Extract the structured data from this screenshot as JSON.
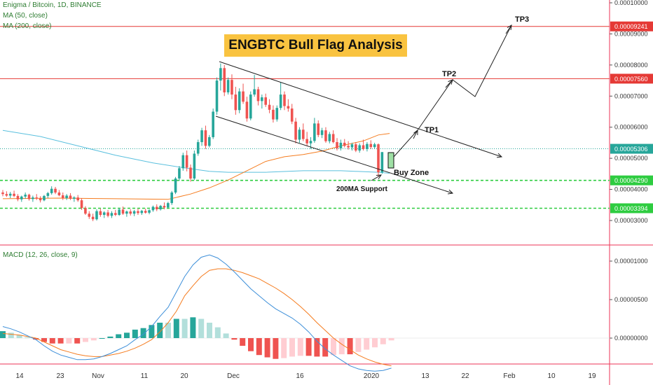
{
  "header": {
    "symbol_line": "Enigma / Bitcoin, 1D, BINANCE",
    "ma50_label": "MA (50, close)",
    "ma200_label": "MA (200, close)",
    "macd_label": "MACD (12, 26, close, 9)",
    "analysis_title": "ENGBTC Bull Flag Analysis"
  },
  "colors": {
    "up": "#26a69a",
    "down": "#ef5350",
    "ma50": "#f57c1f",
    "ma200": "#5bc0de",
    "macd_line": "#3d8fd9",
    "signal_line": "#f57c1f",
    "level_red": "#e53935",
    "level_green": "#2ecc40",
    "title_bg": "#f9c340"
  },
  "chart_data": [
    {
      "type": "candlestick",
      "title": "Enigma / Bitcoin, 1D, BINANCE",
      "xaxis": {
        "ticks": [
          "14",
          "23",
          "Nov",
          "11",
          "20",
          "Dec",
          "16",
          "2020",
          "13",
          "22",
          "Feb",
          "10",
          "19"
        ]
      },
      "yaxis": {
        "range": [
          2.6e-06,
          1.02e-05
        ],
        "ticks": [
          "0.00003000",
          "0.00004000",
          "0.00005000",
          "0.00006000",
          "0.00007000",
          "0.00008000",
          "0.00009000",
          "0.00010000"
        ]
      },
      "candles": [
        [
          3.9e-06,
          3.98e-06,
          3.78e-06,
          3.85e-06
        ],
        [
          3.85e-06,
          3.94e-06,
          3.76e-06,
          3.8e-06
        ],
        [
          3.8e-06,
          3.92e-06,
          3.72e-06,
          3.86e-06
        ],
        [
          3.86e-06,
          3.96e-06,
          3.75e-06,
          3.79e-06
        ],
        [
          3.79e-06,
          3.85e-06,
          3.62e-06,
          3.68e-06
        ],
        [
          3.68e-06,
          3.8e-06,
          3.6e-06,
          3.77e-06
        ],
        [
          3.77e-06,
          3.9e-06,
          3.7e-06,
          3.83e-06
        ],
        [
          3.83e-06,
          3.86e-06,
          3.64e-06,
          3.69e-06
        ],
        [
          3.69e-06,
          3.8e-06,
          3.6e-06,
          3.74e-06
        ],
        [
          3.74e-06,
          3.85e-06,
          3.66e-06,
          3.71e-06
        ],
        [
          3.71e-06,
          3.78e-06,
          3.58e-06,
          3.65e-06
        ],
        [
          3.65e-06,
          3.82e-06,
          3.62e-06,
          3.79e-06
        ],
        [
          3.79e-06,
          3.92e-06,
          3.72e-06,
          3.88e-06
        ],
        [
          3.88e-06,
          4.1e-06,
          3.83e-06,
          4.02e-06
        ],
        [
          4.02e-06,
          4.08e-06,
          3.85e-06,
          3.9e-06
        ],
        [
          3.9e-06,
          3.98e-06,
          3.78e-06,
          3.81e-06
        ],
        [
          3.81e-06,
          3.9e-06,
          3.66e-06,
          3.72e-06
        ],
        [
          3.72e-06,
          3.85e-06,
          3.66e-06,
          3.8e-06
        ],
        [
          3.8e-06,
          3.88e-06,
          3.66e-06,
          3.7e-06
        ],
        [
          3.7e-06,
          3.78e-06,
          3.6e-06,
          3.74e-06
        ],
        [
          3.74e-06,
          3.82e-06,
          3.6e-06,
          3.65e-06
        ],
        [
          3.65e-06,
          3.72e-06,
          3.34e-06,
          3.4e-06
        ],
        [
          3.4e-06,
          3.46e-06,
          3.18e-06,
          3.22e-06
        ],
        [
          3.22e-06,
          3.3e-06,
          3.05e-06,
          3.12e-06
        ],
        [
          3.12e-06,
          3.22e-06,
          2.98e-06,
          3.04e-06
        ],
        [
          3.04e-06,
          3.36e-06,
          3e-06,
          3.3e-06
        ],
        [
          3.3e-06,
          3.38e-06,
          3.12e-06,
          3.18e-06
        ],
        [
          3.18e-06,
          3.3e-06,
          3.08e-06,
          3.26e-06
        ],
        [
          3.26e-06,
          3.34e-06,
          3.1e-06,
          3.15e-06
        ],
        [
          3.15e-06,
          3.3e-06,
          3.08e-06,
          3.24e-06
        ],
        [
          3.24e-06,
          3.34e-06,
          3.14e-06,
          3.18e-06
        ],
        [
          3.18e-06,
          3.4e-06,
          3.15e-06,
          3.35e-06
        ],
        [
          3.35e-06,
          3.45e-06,
          3.18e-06,
          3.22e-06
        ],
        [
          3.22e-06,
          3.32e-06,
          3.12e-06,
          3.29e-06
        ],
        [
          3.29e-06,
          3.36e-06,
          3.16e-06,
          3.22e-06
        ],
        [
          3.22e-06,
          3.34e-06,
          3.14e-06,
          3.3e-06
        ],
        [
          3.3e-06,
          3.38e-06,
          3.18e-06,
          3.24e-06
        ],
        [
          3.24e-06,
          3.34e-06,
          3.18e-06,
          3.31e-06
        ],
        [
          3.31e-06,
          3.38e-06,
          3.22e-06,
          3.25e-06
        ],
        [
          3.25e-06,
          3.36e-06,
          3.2e-06,
          3.33e-06
        ],
        [
          3.33e-06,
          3.48e-06,
          3.28e-06,
          3.44e-06
        ],
        [
          3.44e-06,
          3.52e-06,
          3.3e-06,
          3.36e-06
        ],
        [
          3.36e-06,
          3.5e-06,
          3.32e-06,
          3.47e-06
        ],
        [
          3.47e-06,
          3.58e-06,
          3.36e-06,
          3.42e-06
        ],
        [
          3.42e-06,
          3.6e-06,
          3.4e-06,
          3.56e-06
        ],
        [
          3.56e-06,
          3.95e-06,
          3.5e-06,
          3.9e-06
        ],
        [
          3.9e-06,
          4.4e-06,
          3.85e-06,
          4.35e-06
        ],
        [
          4.35e-06,
          4.75e-06,
          4.28e-06,
          4.68e-06
        ],
        [
          4.68e-06,
          5.18e-06,
          4.6e-06,
          5.1e-06
        ],
        [
          5.1e-06,
          5.25e-06,
          4.58e-06,
          4.7e-06
        ],
        [
          4.7e-06,
          4.8e-06,
          4.25e-06,
          4.35e-06
        ],
        [
          4.35e-06,
          5.25e-06,
          4.3e-06,
          5.15e-06
        ],
        [
          5.15e-06,
          5.6e-06,
          5.08e-06,
          5.52e-06
        ],
        [
          5.52e-06,
          5.98e-06,
          5.4e-06,
          5.9e-06
        ],
        [
          5.9e-06,
          6.05e-06,
          5.3e-06,
          5.4e-06
        ],
        [
          5.4e-06,
          5.75e-06,
          5.35e-06,
          5.68e-06
        ],
        [
          5.68e-06,
          6.6e-06,
          5.62e-06,
          6.5e-06
        ],
        [
          6.5e-06,
          7.6e-06,
          6.4e-06,
          7.5e-06
        ],
        [
          7.5e-06,
          8.05e-06,
          7.18e-06,
          7.9e-06
        ],
        [
          7.9e-06,
          8e-06,
          7e-06,
          7.12e-06
        ],
        [
          7.12e-06,
          7.6e-06,
          7.05e-06,
          7.52e-06
        ],
        [
          7.52e-06,
          7.7e-06,
          6.9e-06,
          7.05e-06
        ],
        [
          7.05e-06,
          7.3e-06,
          6.4e-06,
          6.55e-06
        ],
        [
          6.55e-06,
          7.25e-06,
          6.45e-06,
          7.15e-06
        ],
        [
          7.15e-06,
          7.4e-06,
          6.75e-06,
          6.82e-06
        ],
        [
          6.82e-06,
          6.98e-06,
          6.18e-06,
          6.28e-06
        ],
        [
          6.28e-06,
          7.15e-06,
          6.22e-06,
          7.05e-06
        ],
        [
          7.05e-06,
          7.68e-06,
          6.98e-06,
          7.22e-06
        ],
        [
          7.22e-06,
          7.3e-06,
          6.7e-06,
          6.84e-06
        ],
        [
          6.84e-06,
          7.05e-06,
          6.6e-06,
          6.96e-06
        ],
        [
          6.96e-06,
          7.08e-06,
          6.65e-06,
          6.72e-06
        ],
        [
          6.72e-06,
          6.9e-06,
          6.45e-06,
          6.56e-06
        ],
        [
          6.56e-06,
          6.7e-06,
          6.15e-06,
          6.25e-06
        ],
        [
          6.25e-06,
          6.7e-06,
          6.18e-06,
          6.62e-06
        ],
        [
          6.62e-06,
          7.45e-06,
          6.55e-06,
          7.05e-06
        ],
        [
          7.05e-06,
          7.15e-06,
          6.55e-06,
          6.68e-06
        ],
        [
          6.68e-06,
          6.9e-06,
          6.5e-06,
          6.6e-06
        ],
        [
          6.6e-06,
          6.75e-06,
          6.1e-06,
          6.18e-06
        ],
        [
          6.18e-06,
          6.3e-06,
          5.48e-06,
          5.6e-06
        ],
        [
          5.6e-06,
          6e-06,
          5.5e-06,
          5.92e-06
        ],
        [
          5.92e-06,
          6.12e-06,
          5.55e-06,
          5.62e-06
        ],
        [
          5.62e-06,
          5.85e-06,
          5.4e-06,
          5.48e-06
        ],
        [
          5.48e-06,
          5.68e-06,
          5.3e-06,
          5.56e-06
        ],
        [
          5.56e-06,
          6.3e-06,
          5.5e-06,
          6.12e-06
        ],
        [
          6.12e-06,
          6.22e-06,
          5.68e-06,
          5.75e-06
        ],
        [
          5.75e-06,
          5.98e-06,
          5.65e-06,
          5.9e-06
        ],
        [
          5.9e-06,
          6e-06,
          5.5e-06,
          5.55e-06
        ],
        [
          5.55e-06,
          5.85e-06,
          5.48e-06,
          5.78e-06
        ],
        [
          5.78e-06,
          5.9e-06,
          5.48e-06,
          5.52e-06
        ],
        [
          5.52e-06,
          5.65e-06,
          5.25e-06,
          5.32e-06
        ],
        [
          5.32e-06,
          5.6e-06,
          5.25e-06,
          5.5e-06
        ],
        [
          5.5e-06,
          5.62e-06,
          5.35e-06,
          5.4e-06
        ],
        [
          5.4e-06,
          5.55e-06,
          5.28e-06,
          5.35e-06
        ],
        [
          5.35e-06,
          5.5e-06,
          5.25e-06,
          5.45e-06
        ],
        [
          5.45e-06,
          5.52e-06,
          5.2e-06,
          5.25e-06
        ],
        [
          5.25e-06,
          5.48e-06,
          5.18e-06,
          5.42e-06
        ],
        [
          5.42e-06,
          5.6e-06,
          5.25e-06,
          5.3e-06
        ],
        [
          5.3e-06,
          5.52e-06,
          5.22e-06,
          5.46e-06
        ],
        [
          5.46e-06,
          5.58e-06,
          5.3e-06,
          5.36e-06
        ],
        [
          5.36e-06,
          5.5e-06,
          5.3e-06,
          5.45e-06
        ],
        [
          5.45e-06,
          5.48e-06,
          4.4e-06,
          4.55e-06
        ],
        [
          4.55e-06,
          5.2e-06,
          4.5e-06,
          5.2e-06
        ]
      ],
      "ma50": [
        [
          0,
          3.7e-06
        ],
        [
          15,
          3.72e-06
        ],
        [
          30,
          3.7e-06
        ],
        [
          44,
          3.68e-06
        ],
        [
          50,
          3.85e-06
        ],
        [
          55,
          4.05e-06
        ],
        [
          60,
          4.3e-06
        ],
        [
          65,
          4.6e-06
        ],
        [
          70,
          4.9e-06
        ],
        [
          75,
          5.05e-06
        ],
        [
          80,
          5.12e-06
        ],
        [
          85,
          5.23e-06
        ],
        [
          90,
          5.4e-06
        ],
        [
          96,
          5.56e-06
        ],
        [
          100,
          5.75e-06
        ],
        [
          103,
          5.8e-06
        ]
      ],
      "ma200": [
        [
          0,
          5.9e-06
        ],
        [
          10,
          5.7e-06
        ],
        [
          20,
          5.4e-06
        ],
        [
          30,
          5.1e-06
        ],
        [
          40,
          4.85e-06
        ],
        [
          48,
          4.7e-06
        ],
        [
          55,
          4.58e-06
        ],
        [
          60,
          4.55e-06
        ],
        [
          70,
          4.55e-06
        ],
        [
          80,
          4.6e-06
        ],
        [
          90,
          4.6e-06
        ],
        [
          100,
          4.55e-06
        ],
        [
          103,
          4.52e-06
        ]
      ],
      "horizontal_levels": [
        {
          "price": 9.241e-05,
          "label": "0.00009241",
          "color": "#e53935",
          "style": "solid"
        },
        {
          "price": 7.56e-05,
          "label": "0.00007560",
          "color": "#e53935",
          "style": "solid"
        },
        {
          "price": 5.306e-05,
          "label": "0.00005306",
          "color": "#26a69a",
          "style": "dotted"
        },
        {
          "price": 4.29e-05,
          "label": "0.00004290",
          "color": "#2ecc40",
          "style": "dashed"
        },
        {
          "price": 3.394e-05,
          "label": "0.00003394",
          "color": "#2ecc40",
          "style": "dashed"
        }
      ],
      "annotations": [
        {
          "text": "TP1",
          "price": 5.8e-06
        },
        {
          "text": "TP2",
          "price": 7.7e-06
        },
        {
          "text": "TP3",
          "price": 9.5e-06
        },
        {
          "text": "Buy Zone",
          "price": 4.7e-06
        },
        {
          "text": "200MA Support",
          "price": 4.2e-06
        }
      ]
    },
    {
      "type": "macd",
      "title": "MACD (12, 26, close, 9)",
      "yaxis": {
        "range": [
          -7.5e-07,
          1.2e-06
        ],
        "ticks": [
          "0.00000000",
          "0.00000500",
          "0.00001000"
        ]
      },
      "macd": [
        1.5e-07,
        1.2e-07,
        8e-08,
        3e-08,
        -2e-08,
        -1e-07,
        -1.7e-07,
        -2.2e-07,
        -2.5e-07,
        -2.8e-07,
        -2.8e-07,
        -2.7e-07,
        -2.4e-07,
        -2e-07,
        -1.5e-07,
        -1e-07,
        -2e-08,
        5e-08,
        1.5e-07,
        2.8e-07,
        4e-07,
        6e-07,
        8e-07,
        9.5e-07,
        1.05e-06,
        1.08e-06,
        1.04e-06,
        9.6e-07,
        8.6e-07,
        7.5e-07,
        6.4e-07,
        5.5e-07,
        4.6e-07,
        3.8e-07,
        3.2e-07,
        2.6e-07,
        1.8e-07,
        8e-08,
        -4e-08,
        -1.4e-07,
        -2.2e-07,
        -2.9e-07,
        -3.6e-07,
        -4e-07,
        -4.2e-07,
        -4.3e-07,
        -4.2e-07,
        -3.9e-07
      ],
      "signal": [
        6e-08,
        5e-08,
        4e-08,
        2e-08,
        0.0,
        -5e-08,
        -1e-07,
        -1.5e-07,
        -1.8e-07,
        -2.1e-07,
        -2.3e-07,
        -2.4e-07,
        -2.4e-07,
        -2.2e-07,
        -2e-07,
        -1.7e-07,
        -1.3e-07,
        -8e-08,
        -2e-08,
        8e-08,
        2e-07,
        3.5e-07,
        5.5e-07,
        6.8e-07,
        8e-07,
        8.8e-07,
        9e-07,
        9e-07,
        8.8e-07,
        8.5e-07,
        8.1e-07,
        7.7e-07,
        7.1e-07,
        6.5e-07,
        5.8e-07,
        5e-07,
        4.1e-07,
        3.1e-07,
        2e-07,
        1e-07,
        0.0,
        -8e-08,
        -1.5e-07,
        -2.2e-07,
        -2.7e-07,
        -3.1e-07,
        -3.4e-07,
        -3.6e-07
      ]
    }
  ]
}
